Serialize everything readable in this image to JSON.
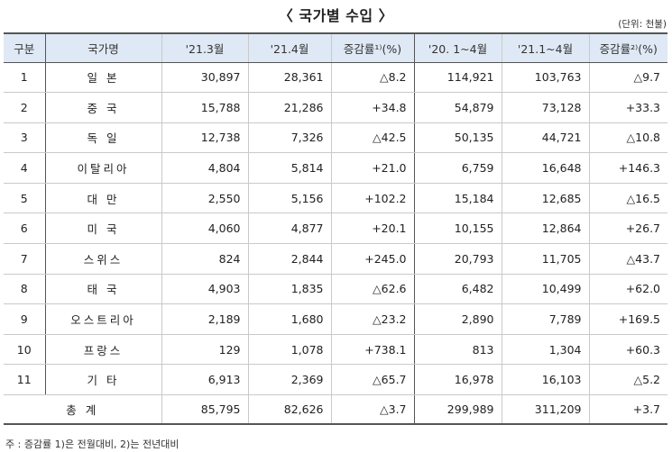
{
  "title": "〈 국가별 수입 〉",
  "unit": "(단위: 천불)",
  "headers": [
    "구분",
    "국가명",
    "'21.3월",
    "'21.4월",
    "증감률¹⁾(%)",
    "'20. 1~4월",
    "'21.1~4월",
    "증감률²⁾(%)"
  ],
  "rows": [
    [
      "1",
      "일 본",
      "30,897",
      "28,361",
      "△8.2",
      "114,921",
      "103,763",
      "△9.7"
    ],
    [
      "2",
      "중 국",
      "15,788",
      "21,286",
      "+34.8",
      "54,879",
      "73,128",
      "+33.3"
    ],
    [
      "3",
      "독 일",
      "12,738",
      "7,326",
      "△42.5",
      "50,135",
      "44,721",
      "△10.8"
    ],
    [
      "4",
      "이탈리아",
      "4,804",
      "5,814",
      "+21.0",
      "6,759",
      "16,648",
      "+146.3"
    ],
    [
      "5",
      "대 만",
      "2,550",
      "5,156",
      "+102.2",
      "15,184",
      "12,685",
      "△16.5"
    ],
    [
      "6",
      "미 국",
      "4,060",
      "4,877",
      "+20.1",
      "10,155",
      "12,864",
      "+26.7"
    ],
    [
      "7",
      "스위스",
      "824",
      "2,844",
      "+245.0",
      "20,793",
      "11,705",
      "△43.7"
    ],
    [
      "8",
      "태 국",
      "4,903",
      "1,835",
      "△62.6",
      "6,482",
      "10,499",
      "+62.0"
    ],
    [
      "9",
      "오스트리아",
      "2,189",
      "1,680",
      "△23.2",
      "2,890",
      "7,789",
      "+169.5"
    ],
    [
      "10",
      "프랑스",
      "129",
      "1,078",
      "+738.1",
      "813",
      "1,304",
      "+60.3"
    ],
    [
      "11",
      "기 타",
      "6,913",
      "2,369",
      "△65.7",
      "16,978",
      "16,103",
      "△5.2"
    ]
  ],
  "total": [
    "총 계",
    "85,795",
    "82,626",
    "△3.7",
    "299,989",
    "311,209",
    "+3.7"
  ],
  "footnote": "주 : 증감률 1)은 전월대비, 2)는 전년대비"
}
